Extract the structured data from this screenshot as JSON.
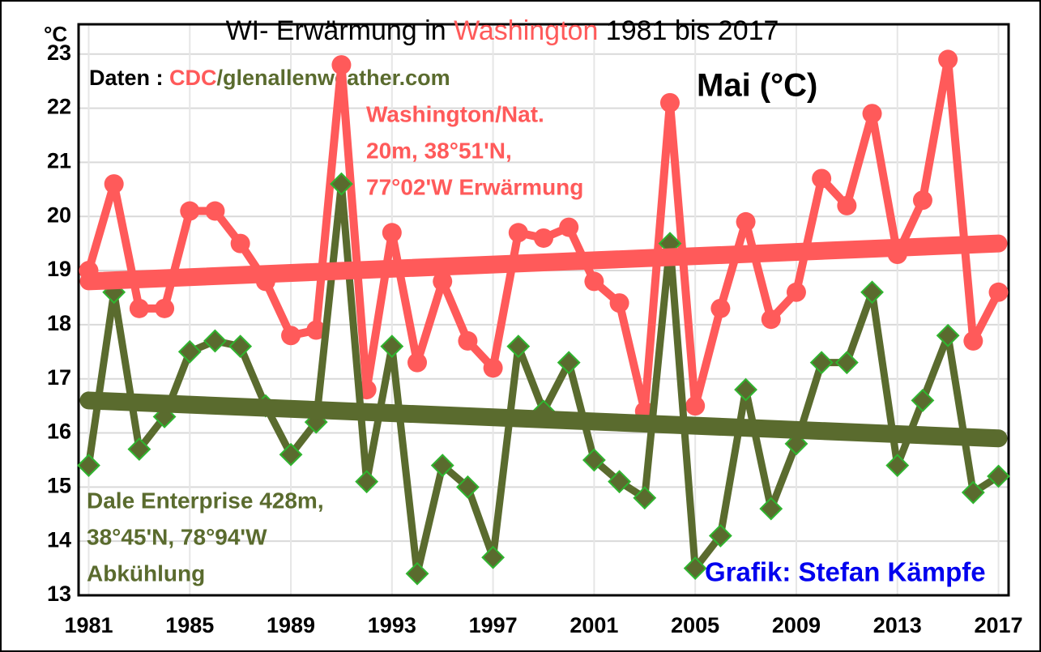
{
  "chart_data": {
    "type": "line",
    "title": [
      {
        "text": "WI- Erwärmung in ",
        "color": "#000000"
      },
      {
        "text": "Washington",
        "color": "#ff5a5a"
      },
      {
        "text": " 1981 bis 2017",
        "color": "#000000"
      }
    ],
    "y_unit": "°C",
    "source": [
      {
        "text": "Daten : ",
        "color": "#000000"
      },
      {
        "text": "CDC",
        "color": "#ff5a5a"
      },
      {
        "text": "/glenallenweather.com",
        "color": "#5a6b2e"
      }
    ],
    "subtitle": "Mai (°C)",
    "annotations": [
      {
        "lines": [
          "Washington/Nat.",
          "20m, 38°51'N,",
          "77°02'W Erwärmung"
        ],
        "color": "#ff5a5a"
      },
      {
        "lines": [
          "Dale Enterprise 428m,",
          "38°45'N, 78°94'W",
          "Abkühlung"
        ],
        "color": "#5a6b2e"
      },
      {
        "lines": [
          "Grafik: Stefan Kämpfe"
        ],
        "color": "#0000ee"
      }
    ],
    "x": [
      1981,
      1982,
      1983,
      1984,
      1985,
      1986,
      1987,
      1988,
      1989,
      1990,
      1991,
      1992,
      1993,
      1994,
      1995,
      1996,
      1997,
      1998,
      1999,
      2000,
      2001,
      2002,
      2003,
      2004,
      2005,
      2006,
      2007,
      2008,
      2009,
      2010,
      2011,
      2012,
      2013,
      2014,
      2015,
      2016,
      2017
    ],
    "series": [
      {
        "color": "#ff5a5a",
        "marker": "circle",
        "values": [
          19.0,
          20.6,
          18.3,
          18.3,
          20.1,
          20.1,
          19.5,
          18.8,
          17.8,
          17.9,
          22.8,
          16.8,
          19.7,
          17.3,
          18.8,
          17.7,
          17.2,
          19.7,
          19.6,
          19.8,
          18.8,
          18.4,
          16.4,
          22.1,
          16.5,
          18.3,
          19.9,
          18.1,
          18.6,
          20.7,
          20.2,
          21.9,
          19.3,
          20.3,
          22.9,
          17.7,
          18.6
        ]
      },
      {
        "color": "#5a6b2e",
        "marker": "diamond",
        "values": [
          15.4,
          18.6,
          15.7,
          16.3,
          17.5,
          17.7,
          17.6,
          16.5,
          15.6,
          16.2,
          20.6,
          15.1,
          17.6,
          13.4,
          15.4,
          15.0,
          13.7,
          17.6,
          16.4,
          17.3,
          15.5,
          15.1,
          14.8,
          19.5,
          13.5,
          14.1,
          16.8,
          14.6,
          15.8,
          17.3,
          17.3,
          18.6,
          15.4,
          16.6,
          17.8,
          14.9,
          15.2
        ]
      }
    ],
    "trends": [
      {
        "color": "#ff5a5a",
        "x": [
          1981,
          2017
        ],
        "values": [
          18.8,
          19.5
        ]
      },
      {
        "color": "#5a6b2e",
        "x": [
          1981,
          2017
        ],
        "values": [
          16.6,
          15.9
        ]
      }
    ],
    "xlim": [
      1980.6,
      2017.4
    ],
    "xticks": [
      1981,
      1985,
      1989,
      1993,
      1997,
      2001,
      2005,
      2009,
      2013,
      2017
    ],
    "ylim": [
      13,
      23.55
    ],
    "yticks": [
      13,
      14,
      15,
      16,
      17,
      18,
      19,
      20,
      21,
      22,
      23
    ],
    "grid": true
  }
}
